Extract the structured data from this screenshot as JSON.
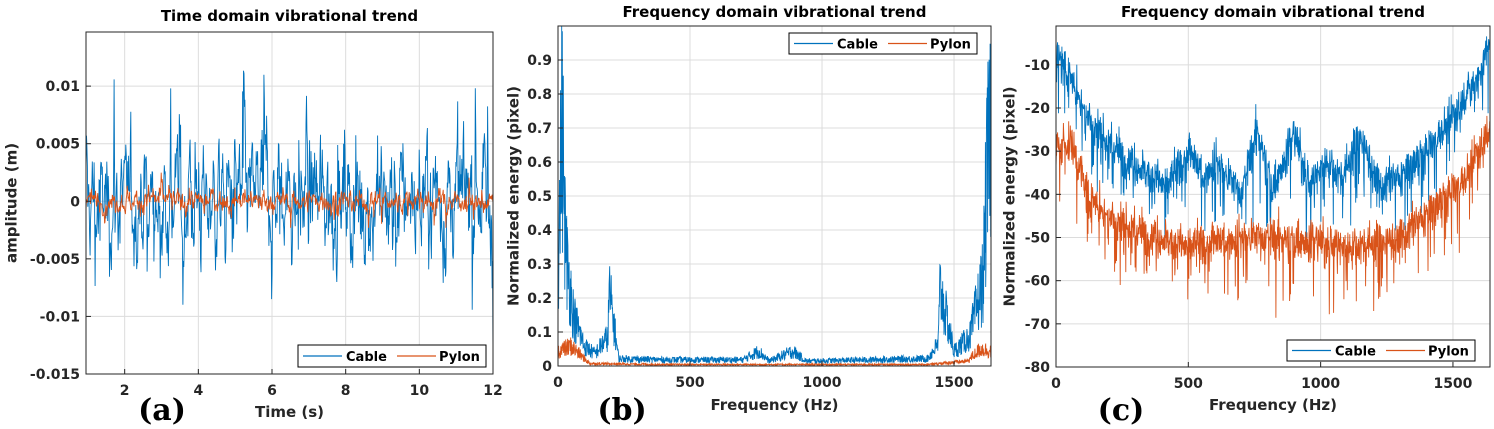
{
  "colors": {
    "cable": "#0072BD",
    "pylon": "#D95319",
    "grid": "#dcdcdc",
    "axis": "#262626"
  },
  "chart_data": [
    {
      "type": "line",
      "panel_label": "(a)",
      "title": "Time domain vibrational trend",
      "xlabel": "Time (s)",
      "ylabel": "amplitude (m)",
      "xlim": [
        0.95,
        12
      ],
      "ylim": [
        -0.015,
        0.0147
      ],
      "xticks": [
        2,
        4,
        6,
        8,
        10,
        12
      ],
      "xtick_labels": [
        "2",
        "4",
        "6",
        "8",
        "10",
        "12"
      ],
      "yticks": [
        -0.015,
        -0.01,
        -0.005,
        0,
        0.005,
        0.01
      ],
      "ytick_labels": [
        "-0.015",
        "-0.01",
        "-0.005",
        "0",
        "0.005",
        "0.01"
      ],
      "grid": true,
      "legend": {
        "entries": [
          "Cable",
          "Pylon"
        ],
        "placement": "bottom-right",
        "orientation": "horizontal"
      },
      "series": [
        {
          "name": "Cable",
          "kind": "noise",
          "std": 0.0042,
          "peak_max": 0.0131,
          "peak_min": -0.0133,
          "points": 900
        },
        {
          "name": "Pylon",
          "kind": "noise",
          "std": 0.0008,
          "peak_max": 0.0026,
          "peak_min": -0.0023,
          "points": 900
        }
      ]
    },
    {
      "type": "line",
      "panel_label": "(b)",
      "title": "Frequency domain vibrational trend",
      "xlabel": "Frequency (Hz)",
      "ylabel": "Normalized energy (pixel)",
      "xlim": [
        0,
        1640
      ],
      "ylim": [
        0,
        1.0
      ],
      "xticks": [
        0,
        500,
        1000,
        1500
      ],
      "xtick_labels": [
        "0",
        "500",
        "1000",
        "1500"
      ],
      "yticks": [
        0,
        0.1,
        0.2,
        0.3,
        0.4,
        0.5,
        0.6,
        0.7,
        0.8,
        0.9
      ],
      "ytick_labels": [
        "0",
        "0.1",
        "0.2",
        "0.3",
        "0.4",
        "0.5",
        "0.6",
        "0.7",
        "0.8",
        "0.9"
      ],
      "grid": true,
      "legend": {
        "entries": [
          "Cable",
          "Pylon"
        ],
        "placement": "top-right",
        "orientation": "horizontal"
      },
      "series": [
        {
          "name": "Cable",
          "envelope": [
            [
              0,
              0.35
            ],
            [
              15,
              1.0
            ],
            [
              30,
              0.45
            ],
            [
              60,
              0.2
            ],
            [
              100,
              0.08
            ],
            [
              140,
              0.05
            ],
            [
              190,
              0.12
            ],
            [
              193,
              0.31
            ],
            [
              230,
              0.03
            ],
            [
              400,
              0.025
            ],
            [
              700,
              0.025
            ],
            [
              760,
              0.06
            ],
            [
              800,
              0.02
            ],
            [
              890,
              0.06
            ],
            [
              940,
              0.02
            ],
            [
              1400,
              0.03
            ],
            [
              1440,
              0.09
            ],
            [
              1447,
              0.31
            ],
            [
              1500,
              0.06
            ],
            [
              1560,
              0.12
            ],
            [
              1610,
              0.35
            ],
            [
              1625,
              0.77
            ],
            [
              1640,
              1.0
            ]
          ]
        },
        {
          "name": "Pylon",
          "envelope": [
            [
              0,
              0.06
            ],
            [
              50,
              0.08
            ],
            [
              100,
              0.03
            ],
            [
              120,
              0.01
            ],
            [
              400,
              0.006
            ],
            [
              1400,
              0.006
            ],
            [
              1550,
              0.02
            ],
            [
              1600,
              0.07
            ],
            [
              1640,
              0.06
            ]
          ]
        }
      ]
    },
    {
      "type": "line",
      "panel_label": "(c)",
      "title": "Frequency domain vibrational trend",
      "xlabel": "Frequency (Hz)",
      "ylabel": "Normalized energy (pixel)",
      "xlim": [
        0,
        1640
      ],
      "ylim": [
        -80,
        -1
      ],
      "xticks": [
        0,
        500,
        1000,
        1500
      ],
      "xtick_labels": [
        "0",
        "500",
        "1000",
        "1500"
      ],
      "yticks": [
        -80,
        -70,
        -60,
        -50,
        -40,
        -30,
        -20,
        -10
      ],
      "ytick_labels": [
        "-80",
        "-70",
        "-60",
        "-50",
        "-40",
        "-30",
        "-20",
        "-10"
      ],
      "grid": true,
      "legend": {
        "entries": [
          "Cable",
          "Pylon"
        ],
        "placement": "bottom-right",
        "orientation": "horizontal"
      },
      "series": [
        {
          "name": "Cable",
          "envelope": [
            [
              0,
              -8
            ],
            [
              50,
              -12
            ],
            [
              120,
              -22
            ],
            [
              200,
              -28
            ],
            [
              300,
              -33
            ],
            [
              420,
              -38
            ],
            [
              500,
              -30
            ],
            [
              560,
              -36
            ],
            [
              600,
              -32
            ],
            [
              700,
              -40
            ],
            [
              760,
              -25
            ],
            [
              820,
              -38
            ],
            [
              900,
              -26
            ],
            [
              960,
              -38
            ],
            [
              1020,
              -32
            ],
            [
              1080,
              -36
            ],
            [
              1150,
              -26
            ],
            [
              1220,
              -38
            ],
            [
              1300,
              -36
            ],
            [
              1400,
              -30
            ],
            [
              1500,
              -22
            ],
            [
              1600,
              -12
            ],
            [
              1640,
              -4
            ]
          ]
        },
        {
          "name": "Pylon",
          "envelope": [
            [
              0,
              -30
            ],
            [
              50,
              -27
            ],
            [
              120,
              -40
            ],
            [
              200,
              -45
            ],
            [
              300,
              -48
            ],
            [
              500,
              -52
            ],
            [
              700,
              -50
            ],
            [
              900,
              -50
            ],
            [
              1100,
              -52
            ],
            [
              1300,
              -50
            ],
            [
              1450,
              -42
            ],
            [
              1550,
              -36
            ],
            [
              1640,
              -24
            ]
          ]
        }
      ]
    }
  ]
}
